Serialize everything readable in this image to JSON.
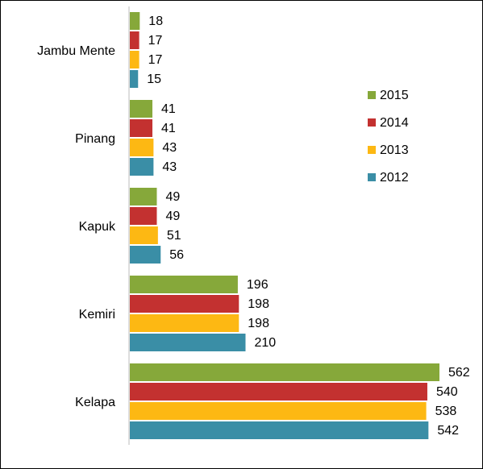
{
  "chart_data": {
    "type": "bar",
    "orientation": "horizontal",
    "categories": [
      "Jambu Mente",
      "Pinang",
      "Kapuk",
      "Kemiri",
      "Kelapa"
    ],
    "series": [
      {
        "name": "2015",
        "color": "#86a83a",
        "values": [
          18,
          41,
          49,
          196,
          562
        ]
      },
      {
        "name": "2014",
        "color": "#c33130",
        "values": [
          17,
          41,
          49,
          198,
          540
        ]
      },
      {
        "name": "2013",
        "color": "#fdb813",
        "values": [
          17,
          43,
          51,
          198,
          538
        ]
      },
      {
        "name": "2012",
        "color": "#3a8ea6",
        "values": [
          15,
          43,
          56,
          210,
          542
        ]
      }
    ],
    "legend": "upper right"
  }
}
